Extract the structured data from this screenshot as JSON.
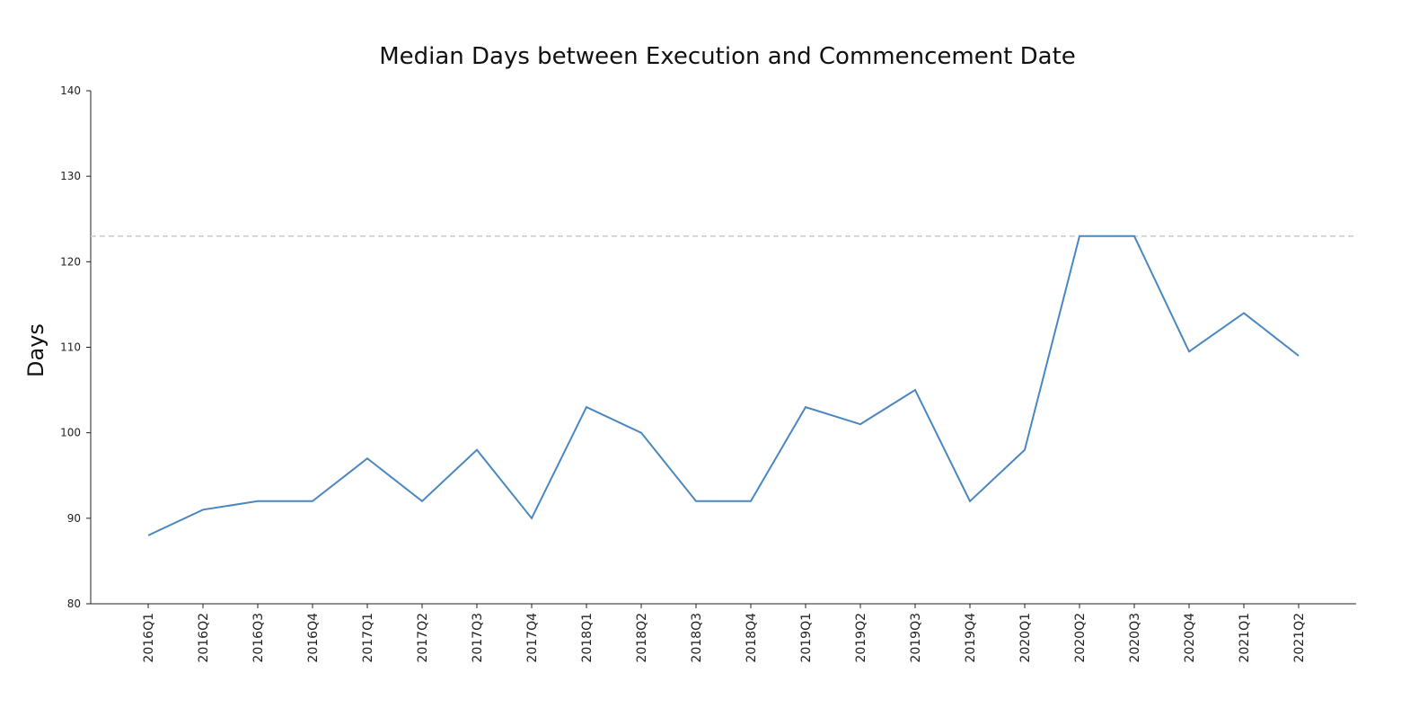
{
  "chart_data": {
    "type": "line",
    "title": "Median Days between Execution and Commencement Date",
    "xlabel": "",
    "ylabel": "Days",
    "ylim": [
      80,
      140
    ],
    "yticks": [
      "80",
      "90",
      "100",
      "110",
      "120",
      "130",
      "140"
    ],
    "categories": [
      "2016Q1",
      "2016Q2",
      "2016Q3",
      "2016Q4",
      "2017Q1",
      "2017Q2",
      "2017Q3",
      "2017Q4",
      "2018Q1",
      "2018Q2",
      "2018Q3",
      "2018Q4",
      "2019Q1",
      "2019Q2",
      "2019Q3",
      "2019Q4",
      "2020Q1",
      "2020Q2",
      "2020Q3",
      "2020Q4",
      "2021Q1",
      "2021Q2"
    ],
    "series": [
      {
        "values": [
          88,
          91,
          92,
          92,
          97,
          92,
          98,
          90,
          103,
          100,
          92,
          92,
          103,
          101,
          105,
          92,
          98,
          123,
          123,
          109.5,
          114,
          109
        ]
      }
    ],
    "reference_line": {
      "y": 123,
      "style": "dashed"
    },
    "grid": false,
    "line_color": "#4a87c1",
    "reference_color": "#cccccc"
  }
}
